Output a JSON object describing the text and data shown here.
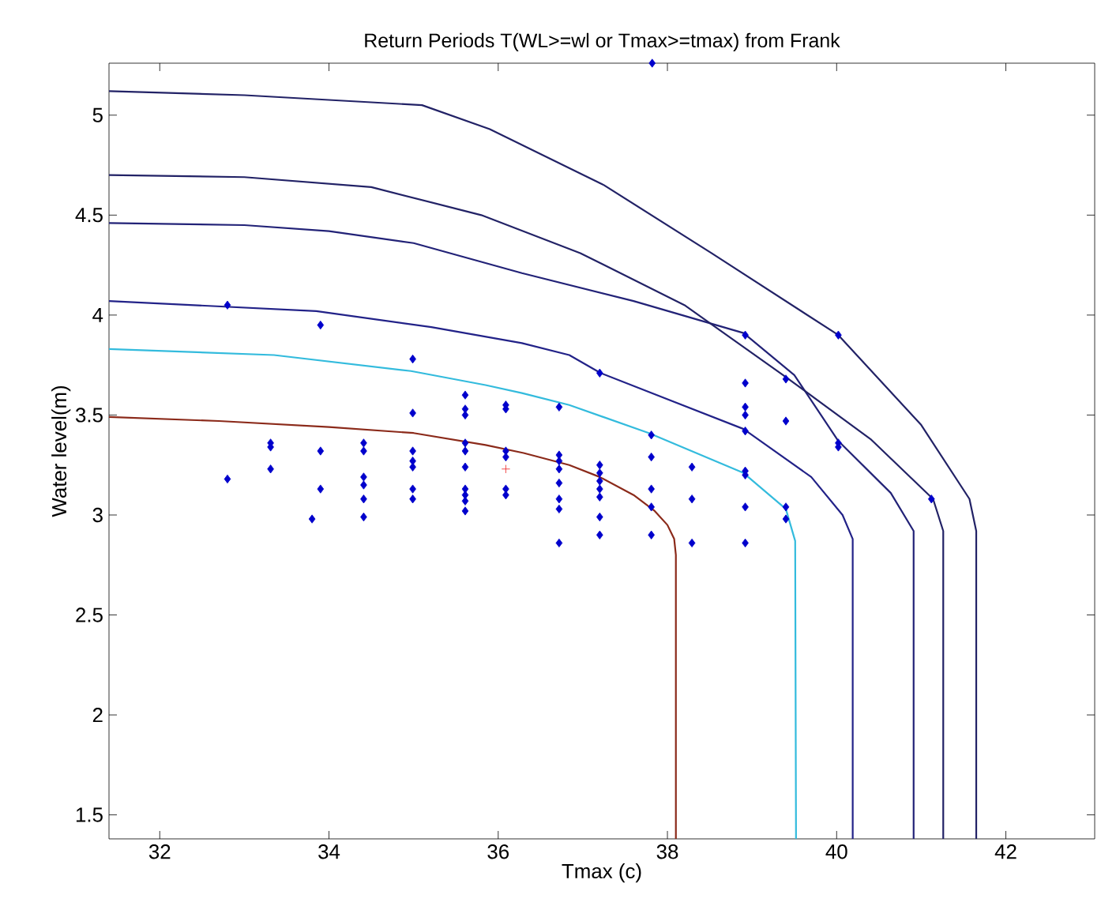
{
  "chart_data": {
    "type": "line",
    "title": "Return Periods T(WL>=wl or Tmax>=tmax) from Frank",
    "xlabel": "Tmax (c)",
    "ylabel": "Water level(m)",
    "xlim": [
      31.4,
      43.05
    ],
    "ylim": [
      1.38,
      5.26
    ],
    "xticks": [
      32,
      34,
      36,
      38,
      40,
      42
    ],
    "yticks": [
      1.5,
      2,
      2.5,
      3,
      3.5,
      4,
      4.5,
      5
    ],
    "grid": false,
    "legend": false,
    "series": [
      {
        "type": "line",
        "color": "#8b2a1a",
        "x": [
          31.4,
          32.7,
          34,
          35,
          35.85,
          36.3,
          36.84,
          37.2,
          37.6,
          37.85,
          38.0,
          38.08,
          38.1,
          38.1
        ],
        "values": [
          3.49,
          3.47,
          3.44,
          3.41,
          3.35,
          3.31,
          3.25,
          3.19,
          3.1,
          3.02,
          2.95,
          2.88,
          2.8,
          1.38
        ]
      },
      {
        "type": "line",
        "color": "#33bbdd",
        "x": [
          31.4,
          33.35,
          34.97,
          35.85,
          36.28,
          36.84,
          37.78,
          38.9,
          39.4,
          39.51,
          39.52
        ],
        "values": [
          3.83,
          3.8,
          3.72,
          3.65,
          3.61,
          3.55,
          3.41,
          3.21,
          3.03,
          2.87,
          1.38
        ]
      },
      {
        "type": "line",
        "color": "#222288",
        "x": [
          31.4,
          33.85,
          35.21,
          36.28,
          36.84,
          37.21,
          38.9,
          39.7,
          40.07,
          40.19,
          40.19
        ],
        "values": [
          4.07,
          4.02,
          3.94,
          3.86,
          3.8,
          3.71,
          3.43,
          3.19,
          3.0,
          2.88,
          1.38
        ]
      },
      {
        "type": "line",
        "color": "#222277",
        "x": [
          31.4,
          33,
          34,
          35,
          36.28,
          37.6,
          38.9,
          39.5,
          40.02,
          40.64,
          40.91,
          40.91
        ],
        "values": [
          4.46,
          4.45,
          4.42,
          4.36,
          4.21,
          4.07,
          3.91,
          3.7,
          3.37,
          3.11,
          2.92,
          1.38
        ]
      },
      {
        "type": "line",
        "color": "#222266",
        "x": [
          31.4,
          33,
          34.5,
          35.8,
          36.97,
          38.2,
          39.4,
          40.4,
          41.14,
          41.26,
          41.26
        ],
        "values": [
          4.7,
          4.69,
          4.64,
          4.5,
          4.31,
          4.05,
          3.69,
          3.38,
          3.08,
          2.92,
          1.38
        ]
      },
      {
        "type": "line",
        "color": "#222266",
        "x": [
          31.4,
          33,
          35.1,
          35.9,
          37.25,
          38.52,
          40.02,
          41.0,
          41.57,
          41.65,
          41.65
        ],
        "values": [
          5.12,
          5.1,
          5.05,
          4.93,
          4.65,
          4.31,
          3.9,
          3.45,
          3.08,
          2.92,
          1.38
        ]
      },
      {
        "type": "scatter",
        "marker": "diamond",
        "color": "#0000cc",
        "x": [
          32.8,
          32.8,
          33.31,
          33.31,
          33.31,
          33.9,
          33.9,
          33.9,
          33.8,
          34.41,
          34.41,
          34.41,
          34.41,
          34.41,
          34.41,
          34.99,
          34.99,
          34.99,
          34.99,
          34.99,
          34.99,
          34.99,
          35.61,
          35.61,
          35.61,
          35.61,
          35.61,
          35.61,
          35.61,
          35.61,
          35.61,
          35.61,
          36.09,
          36.09,
          36.09,
          36.09,
          36.09,
          36.09,
          36.72,
          36.72,
          36.72,
          36.72,
          36.72,
          36.72,
          36.72,
          36.72,
          37.2,
          37.2,
          37.2,
          37.2,
          37.2,
          37.2,
          37.2,
          37.2,
          37.81,
          37.81,
          37.81,
          37.81,
          37.81,
          38.29,
          38.29,
          38.29,
          38.92,
          38.92,
          38.92,
          38.92,
          38.92,
          38.92,
          38.92,
          38.92,
          38.92,
          39.4,
          39.4,
          39.4,
          39.4,
          40.02,
          40.02,
          40.02,
          41.12,
          37.82
        ],
        "values": [
          4.05,
          3.18,
          3.36,
          3.34,
          3.23,
          3.95,
          3.32,
          3.13,
          2.98,
          3.36,
          3.32,
          3.19,
          3.15,
          3.08,
          2.99,
          3.78,
          3.51,
          3.32,
          3.27,
          3.24,
          3.13,
          3.08,
          3.6,
          3.53,
          3.5,
          3.36,
          3.32,
          3.24,
          3.13,
          3.1,
          3.07,
          3.02,
          3.55,
          3.53,
          3.32,
          3.29,
          3.13,
          3.1,
          3.54,
          3.3,
          3.27,
          3.23,
          3.16,
          3.08,
          3.03,
          2.86,
          3.71,
          3.25,
          3.21,
          3.17,
          3.13,
          3.09,
          2.99,
          2.9,
          3.4,
          3.29,
          3.13,
          3.04,
          2.9,
          3.24,
          3.08,
          2.86,
          3.9,
          3.66,
          3.54,
          3.5,
          3.42,
          3.22,
          3.2,
          3.04,
          2.86,
          3.68,
          3.47,
          3.04,
          2.98,
          3.9,
          3.36,
          3.34,
          3.08,
          5.26
        ]
      },
      {
        "type": "scatter",
        "marker": "cross",
        "color": "#ee2222",
        "x": [
          36.09
        ],
        "values": [
          3.23
        ]
      }
    ]
  }
}
